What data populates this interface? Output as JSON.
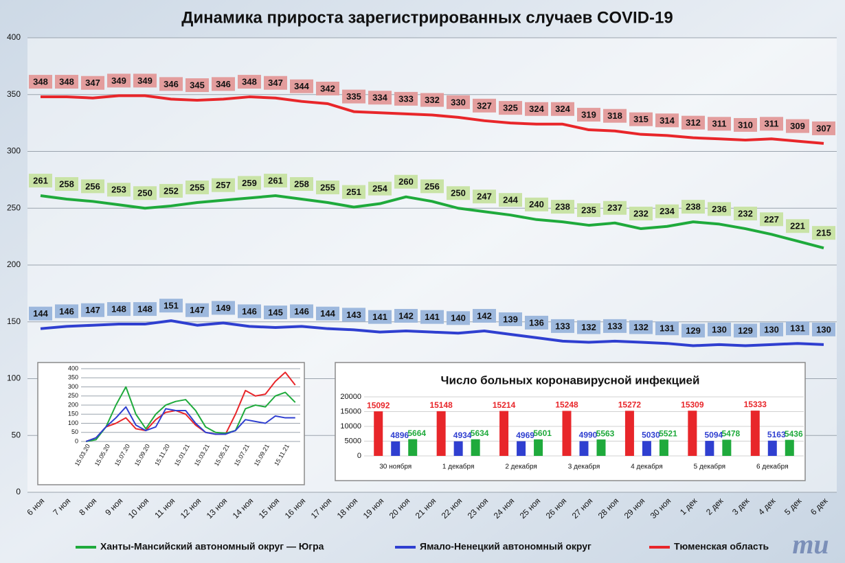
{
  "chart_data": [
    {
      "type": "line",
      "title": "Динамика прироста зарегистрированных случаев COVID-19",
      "categories": [
        "6 ноя",
        "7 ноя",
        "8 ноя",
        "9 ноя",
        "10 ноя",
        "11 ноя",
        "12 ноя",
        "13 ноя",
        "14 ноя",
        "15 ноя",
        "16 ноя",
        "17 ноя",
        "18 ноя",
        "19 ноя",
        "20 ноя",
        "21 ноя",
        "22 ноя",
        "23 ноя",
        "24 ноя",
        "25 ноя",
        "26 ноя",
        "27 ноя",
        "28 ноя",
        "29 ноя",
        "30 ноя",
        "1 дек",
        "2 дек",
        "3 дек",
        "4 дек",
        "5 дек",
        "6 дек"
      ],
      "series": [
        {
          "name": "Ханты-Мансийский автономный округ — Югра",
          "color": "#1faa3c",
          "label_background": "#c9e3a6",
          "values": [
            261,
            258,
            256,
            253,
            250,
            252,
            255,
            257,
            259,
            261,
            258,
            255,
            251,
            254,
            260,
            256,
            250,
            247,
            244,
            240,
            238,
            235,
            237,
            232,
            234,
            238,
            236,
            232,
            227,
            221,
            215
          ]
        },
        {
          "name": "Ямало-Ненецкий автономный округ",
          "color": "#2f3fd0",
          "label_background": "#9db8dd",
          "values": [
            144,
            146,
            147,
            148,
            148,
            151,
            147,
            149,
            146,
            145,
            146,
            144,
            143,
            141,
            142,
            141,
            140,
            142,
            139,
            136,
            133,
            132,
            133,
            132,
            131,
            129,
            130,
            129,
            130,
            131,
            130
          ]
        },
        {
          "name": "Тюменская область",
          "color": "#e8262a",
          "label_background": "#e39d9d",
          "values": [
            348,
            348,
            347,
            349,
            349,
            346,
            345,
            346,
            348,
            347,
            344,
            342,
            335,
            334,
            333,
            332,
            330,
            327,
            325,
            324,
            324,
            319,
            318,
            315,
            314,
            312,
            311,
            310,
            311,
            309,
            307
          ]
        }
      ],
      "ylim": [
        0,
        400
      ],
      "yticks": [
        0,
        50,
        100,
        150,
        200,
        250,
        300,
        350,
        400
      ],
      "grid": true,
      "legend": "bottom"
    },
    {
      "type": "line",
      "categories": [
        "15.03.20",
        null,
        "15.05.20",
        null,
        "15.07.20",
        null,
        "15.09.20",
        null,
        "15.11.20",
        null,
        "15.01.21",
        null,
        "15.03.21",
        null,
        "15.05.21",
        null,
        "15.07.21",
        null,
        "15.09.21",
        null,
        "15.11.21",
        null
      ],
      "series": [
        {
          "color": "#e8262a",
          "values": [
            0,
            20,
            80,
            100,
            130,
            70,
            60,
            120,
            160,
            170,
            150,
            90,
            50,
            40,
            40,
            150,
            280,
            250,
            260,
            330,
            380,
            310
          ]
        },
        {
          "color": "#1faa3c",
          "values": [
            0,
            10,
            80,
            200,
            300,
            150,
            70,
            150,
            200,
            220,
            230,
            170,
            80,
            50,
            45,
            60,
            180,
            200,
            190,
            250,
            270,
            215
          ]
        },
        {
          "color": "#2f3fd0",
          "values": [
            0,
            20,
            80,
            130,
            190,
            90,
            60,
            80,
            180,
            170,
            170,
            100,
            50,
            40,
            40,
            60,
            120,
            110,
            100,
            140,
            130,
            130
          ]
        }
      ],
      "ylim": [
        0,
        400
      ],
      "yticks": [
        0,
        50,
        100,
        150,
        200,
        250,
        300,
        350,
        400
      ],
      "grid": true
    },
    {
      "type": "bar",
      "title": "Число больных  коронавирусной  инфекцией",
      "categories": [
        "30 ноября",
        "1 декабря",
        "2 декабря",
        "3 декабря",
        "4 декабря",
        "5 декабря",
        "6 декабря"
      ],
      "series": [
        {
          "color": "#e8262a",
          "values": [
            15092,
            15148,
            15214,
            15248,
            15272,
            15309,
            15333
          ]
        },
        {
          "color": "#2f3fd0",
          "values": [
            4896,
            4934,
            4969,
            4990,
            5030,
            5094,
            5163
          ]
        },
        {
          "color": "#1faa3c",
          "values": [
            5664,
            5634,
            5601,
            5563,
            5521,
            5478,
            5436
          ]
        }
      ],
      "ylim": [
        0,
        20000
      ],
      "yticks": [
        0,
        5000,
        10000,
        15000,
        20000
      ],
      "grid": true
    }
  ],
  "logo": "mu"
}
